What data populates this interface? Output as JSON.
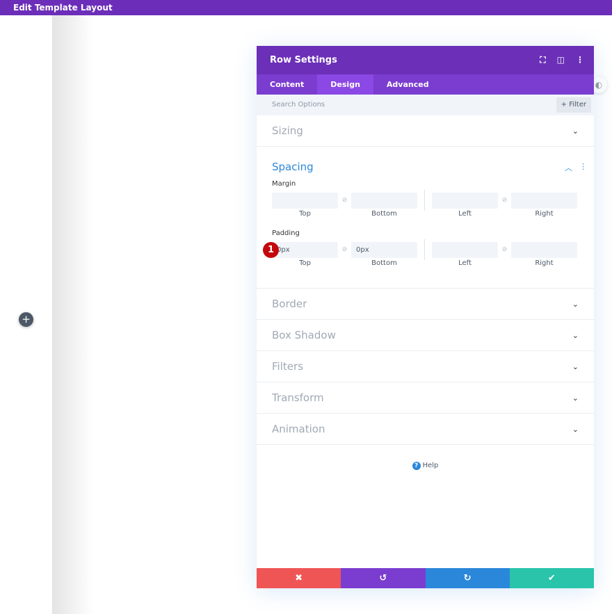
{
  "topbar": {
    "title": "Edit Template Layout"
  },
  "modal": {
    "title": "Row Settings",
    "tabs": [
      {
        "label": "Content"
      },
      {
        "label": "Design"
      },
      {
        "label": "Advanced"
      }
    ],
    "search_placeholder": "Search Options",
    "filter_label": "+ Filter",
    "sections_top": [
      {
        "label": "Sizing"
      }
    ],
    "spacing": {
      "title": "Spacing",
      "margin_label": "Margin",
      "padding_label": "Padding",
      "sub_labels": [
        "Top",
        "Bottom",
        "Left",
        "Right"
      ],
      "margin": [
        "",
        "",
        "",
        ""
      ],
      "padding": [
        "0px",
        "0px",
        "",
        ""
      ],
      "badge": "1"
    },
    "sections": [
      {
        "label": "Border"
      },
      {
        "label": "Box Shadow"
      },
      {
        "label": "Filters"
      },
      {
        "label": "Transform"
      },
      {
        "label": "Animation"
      }
    ],
    "help": "Help"
  },
  "colors": {
    "header": "#6b2fb8",
    "tabs": "#7b3dd0",
    "cancel": "#ef5555",
    "undo": "#7b3dd0",
    "redo": "#2b87da",
    "save": "#29c4a9",
    "accent": "#2b87da"
  }
}
